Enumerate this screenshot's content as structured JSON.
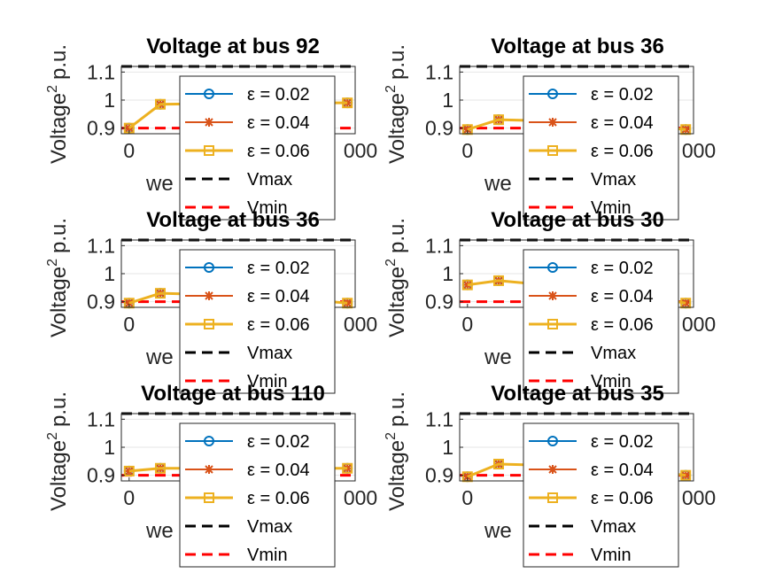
{
  "chart_data": [
    {
      "type": "line",
      "title": "Voltage at bus 92",
      "ylabel_main": "Voltage",
      "ylabel_sup": "2",
      "ylabel_unit": "p.u.",
      "xlabel_visible": "we",
      "xtick_labels": [
        "0",
        "1"
      ],
      "xtick_tail": "000",
      "ytick_labels": [
        "0.9",
        "1",
        "1.1"
      ],
      "ylim": [
        0.88,
        1.12
      ],
      "yticks": [
        0.9,
        1.0,
        1.1
      ],
      "x": [
        0,
        0.4,
        1.8,
        2.8
      ],
      "series": [
        {
          "name": "ε  = 0.02",
          "values": [
            0.9,
            0.985,
            0.99,
            0.99
          ]
        },
        {
          "name": "ε  = 0.04",
          "values": [
            0.9,
            0.985,
            0.99,
            0.99
          ]
        },
        {
          "name": "ε  = 0.06",
          "values": [
            0.9,
            0.985,
            0.99,
            0.99
          ]
        }
      ],
      "vmax": 1.12,
      "vmin": 0.9,
      "legend": [
        "ε  = 0.02",
        "ε  = 0.04",
        "ε  = 0.06",
        "Vmax",
        "Vmin"
      ]
    },
    {
      "type": "line",
      "title": "Voltage at bus 36",
      "ylabel_main": "Voltage",
      "ylabel_sup": "2",
      "ylabel_unit": "p.u.",
      "xlabel_visible": "we",
      "xtick_labels": [
        "0",
        "1"
      ],
      "xtick_tail": "000",
      "ytick_labels": [
        "0.9",
        "1",
        "1.1"
      ],
      "ylim": [
        0.88,
        1.12
      ],
      "yticks": [
        0.9,
        1.0,
        1.1
      ],
      "x": [
        0,
        0.4,
        1.8,
        2.8
      ],
      "series": [
        {
          "name": "ε  = 0.02",
          "values": [
            0.895,
            0.93,
            0.92,
            0.895
          ]
        },
        {
          "name": "ε  = 0.04",
          "values": [
            0.895,
            0.93,
            0.92,
            0.895
          ]
        },
        {
          "name": "ε  = 0.06",
          "values": [
            0.895,
            0.93,
            0.92,
            0.895
          ]
        }
      ],
      "vmax": 1.12,
      "vmin": 0.9,
      "legend": [
        "ε  = 0.02",
        "ε  = 0.04",
        "ε  = 0.06",
        "Vmax",
        "Vmin"
      ]
    },
    {
      "type": "line",
      "title": "Voltage at bus 36",
      "ylabel_main": "Voltage",
      "ylabel_sup": "2",
      "ylabel_unit": "p.u.",
      "xlabel_visible": "we",
      "xtick_labels": [
        "0",
        "1"
      ],
      "xtick_tail": "000",
      "ytick_labels": [
        "0.9",
        "1",
        "1.1"
      ],
      "ylim": [
        0.88,
        1.12
      ],
      "yticks": [
        0.9,
        1.0,
        1.1
      ],
      "x": [
        0,
        0.4,
        1.8,
        2.8
      ],
      "series": [
        {
          "name": "ε  = 0.02",
          "values": [
            0.895,
            0.93,
            0.92,
            0.895
          ]
        },
        {
          "name": "ε  = 0.04",
          "values": [
            0.895,
            0.93,
            0.92,
            0.895
          ]
        },
        {
          "name": "ε  = 0.06",
          "values": [
            0.895,
            0.93,
            0.92,
            0.895
          ]
        }
      ],
      "vmax": 1.12,
      "vmin": 0.9,
      "legend": [
        "ε  = 0.02",
        "ε  = 0.04",
        "ε  = 0.06",
        "Vmax",
        "Vmin"
      ]
    },
    {
      "type": "line",
      "title": "Voltage at bus 30",
      "ylabel_main": "Voltage",
      "ylabel_sup": "2",
      "ylabel_unit": "p.u.",
      "xlabel_visible": "we",
      "xtick_labels": [
        "0",
        "1"
      ],
      "xtick_tail": "000",
      "ytick_labels": [
        "0.9",
        "1",
        "1.1"
      ],
      "ylim": [
        0.88,
        1.12
      ],
      "yticks": [
        0.9,
        1.0,
        1.1
      ],
      "x": [
        0,
        0.4,
        1.8,
        2.8
      ],
      "series": [
        {
          "name": "ε  = 0.02",
          "values": [
            0.96,
            0.975,
            0.94,
            0.895
          ]
        },
        {
          "name": "ε  = 0.04",
          "values": [
            0.96,
            0.975,
            0.94,
            0.895
          ]
        },
        {
          "name": "ε  = 0.06",
          "values": [
            0.96,
            0.975,
            0.94,
            0.895
          ]
        }
      ],
      "vmax": 1.12,
      "vmin": 0.9,
      "legend": [
        "ε  = 0.02",
        "ε  = 0.04",
        "ε  = 0.06",
        "Vmax",
        "Vmin"
      ]
    },
    {
      "type": "line",
      "title": "Voltage at bus 110",
      "ylabel_main": "Voltage",
      "ylabel_sup": "2",
      "ylabel_unit": "p.u.",
      "xlabel_visible": "we",
      "xtick_labels": [
        "0",
        "1"
      ],
      "xtick_tail": "000",
      "ytick_labels": [
        "0.9",
        "1",
        "1.1"
      ],
      "ylim": [
        0.88,
        1.12
      ],
      "yticks": [
        0.9,
        1.0,
        1.1
      ],
      "x": [
        0,
        0.4,
        1.8,
        2.8
      ],
      "series": [
        {
          "name": "ε  = 0.02",
          "values": [
            0.915,
            0.925,
            0.925,
            0.925
          ]
        },
        {
          "name": "ε  = 0.04",
          "values": [
            0.915,
            0.925,
            0.925,
            0.925
          ]
        },
        {
          "name": "ε  = 0.06",
          "values": [
            0.915,
            0.925,
            0.925,
            0.925
          ]
        }
      ],
      "vmax": 1.12,
      "vmin": 0.9,
      "legend": [
        "ε  = 0.02",
        "ε  = 0.04",
        "ε  = 0.06",
        "Vmax",
        "Vmin"
      ]
    },
    {
      "type": "line",
      "title": "Voltage at bus 35",
      "ylabel_main": "Voltage",
      "ylabel_sup": "2",
      "ylabel_unit": "p.u.",
      "xlabel_visible": "we",
      "xtick_labels": [
        "0",
        "1"
      ],
      "xtick_tail": "000",
      "ytick_labels": [
        "0.9",
        "1",
        "1.1"
      ],
      "ylim": [
        0.88,
        1.12
      ],
      "yticks": [
        0.9,
        1.0,
        1.1
      ],
      "x": [
        0,
        0.4,
        1.8,
        2.8
      ],
      "series": [
        {
          "name": "ε  = 0.02",
          "values": [
            0.895,
            0.94,
            0.93,
            0.9
          ]
        },
        {
          "name": "ε  = 0.04",
          "values": [
            0.895,
            0.94,
            0.93,
            0.9
          ]
        },
        {
          "name": "ε  = 0.06",
          "values": [
            0.895,
            0.94,
            0.93,
            0.9
          ]
        }
      ],
      "vmax": 1.12,
      "vmin": 0.9,
      "legend": [
        "ε  = 0.02",
        "ε  = 0.04",
        "ε  = 0.06",
        "Vmax",
        "Vmin"
      ]
    }
  ],
  "colors": {
    "series": [
      "#0072BD",
      "#D95319",
      "#EDB120"
    ],
    "vmax": "#000000",
    "vmin": "#FF0000",
    "grid": "#E6E6E6",
    "axes": "#262626"
  },
  "markers": [
    "circle",
    "asterisk",
    "square"
  ],
  "xlim": [
    -0.1,
    2.9
  ]
}
